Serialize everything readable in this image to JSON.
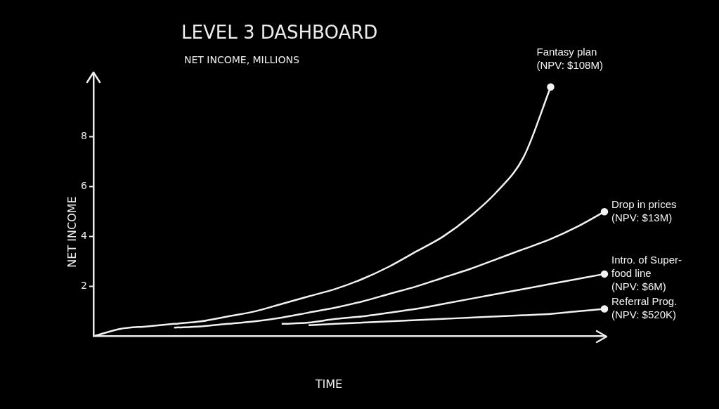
{
  "chart_data": {
    "type": "line",
    "title": "LEVEL 3 DASHBOARD",
    "subtitle": "NET INCOME, MILLIONS",
    "xlabel": "TIME",
    "ylabel": "NET INCOME",
    "categories": [
      null,
      null,
      null,
      null,
      null,
      null,
      null,
      null,
      null,
      null,
      null,
      null,
      null,
      null,
      null,
      null,
      null,
      null,
      null,
      null
    ],
    "ylim": [
      0,
      10.5
    ],
    "yticks": [
      2,
      4,
      6,
      8
    ],
    "grid": false,
    "legend": false,
    "series": [
      {
        "name": "Fantasy plan\n(NPV: $108M)",
        "color": "#f2f2f2",
        "values": [
          0,
          0.3,
          0.4,
          0.5,
          0.6,
          0.8,
          1.0,
          1.3,
          1.6,
          1.9,
          2.3,
          2.8,
          3.4,
          4.0,
          4.8,
          5.8,
          7.2,
          10.0,
          null,
          null
        ]
      },
      {
        "name": "Drop in prices\n(NPV: $13M)",
        "color": "#f2f2f2",
        "values": [
          null,
          null,
          null,
          0.35,
          0.4,
          0.5,
          0.6,
          0.75,
          0.95,
          1.15,
          1.4,
          1.7,
          2.0,
          2.35,
          2.7,
          3.1,
          3.5,
          3.9,
          4.4,
          5.0
        ]
      },
      {
        "name": "Intro. of Super-\nfood line\n(NPV: $6M)",
        "color": "#f2f2f2",
        "values": [
          null,
          null,
          null,
          null,
          null,
          null,
          null,
          0.5,
          0.55,
          0.7,
          0.8,
          0.95,
          1.1,
          1.3,
          1.5,
          1.7,
          1.9,
          2.1,
          2.3,
          2.5
        ]
      },
      {
        "name": "Referral Prog.\n(NPV: $520K)",
        "color": "#f2f2f2",
        "values": [
          null,
          null,
          null,
          null,
          null,
          null,
          null,
          null,
          0.45,
          0.5,
          0.55,
          0.6,
          0.65,
          0.7,
          0.75,
          0.8,
          0.85,
          0.9,
          1.0,
          1.1
        ]
      }
    ]
  }
}
